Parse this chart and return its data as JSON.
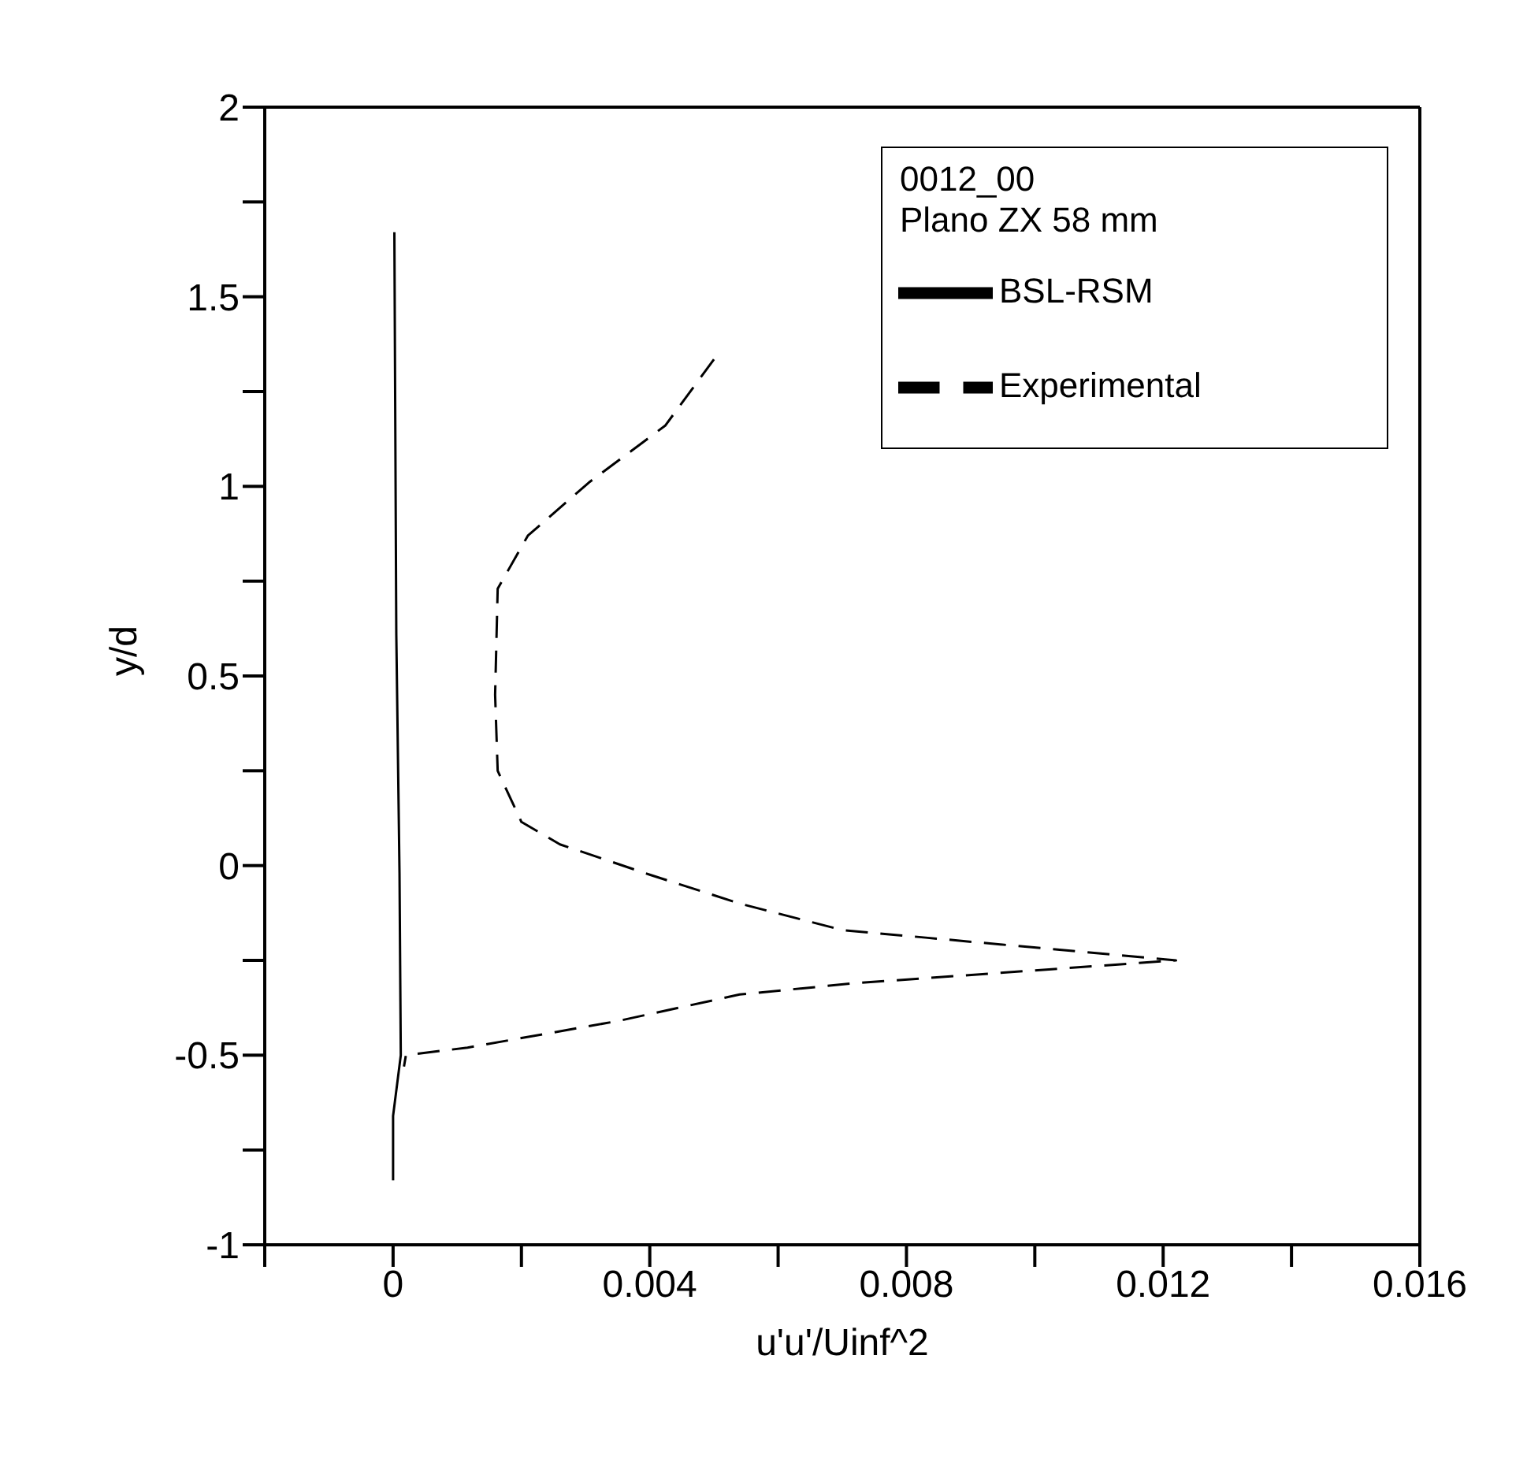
{
  "chart_data": {
    "type": "line",
    "xlabel": "u'u'/Uinf^2",
    "ylabel": "y/d",
    "legend_title": "0012_00\nPlano ZX 58 mm",
    "xlim": [
      -0.002,
      0.016
    ],
    "ylim": [
      -1,
      2
    ],
    "xticks": [
      {
        "value": -0.002,
        "label": null
      },
      0,
      {
        "value": 0.002,
        "label": null
      },
      0.004,
      {
        "value": 0.006,
        "label": null
      },
      0.008,
      {
        "value": 0.01,
        "label": null
      },
      0.012,
      {
        "value": 0.014,
        "label": null
      },
      0.016
    ],
    "yticks": [
      -1,
      {
        "value": -0.75,
        "label": null
      },
      -0.5,
      {
        "value": -0.25,
        "label": null
      },
      0,
      {
        "value": 0.25,
        "label": null
      },
      0.5,
      {
        "value": 0.75,
        "label": null
      },
      1,
      {
        "value": 1.25,
        "label": null
      },
      1.5,
      {
        "value": 1.75,
        "label": null
      },
      2
    ],
    "grid": false,
    "legend": "top right",
    "marker": "none",
    "series": [
      {
        "name": "BSL-RSM",
        "color": "#000000",
        "line_style": "solid",
        "x": [
          2e-05,
          5e-05,
          0.0001,
          0.00012,
          0.0,
          0.0
        ],
        "values": [
          1.67,
          0.61,
          -0.02,
          -0.5,
          -0.66,
          -0.83
        ]
      },
      {
        "name": "Experimental",
        "color": "#000000",
        "line_style": "dashed",
        "x": [
          0.005,
          0.00424,
          0.00305,
          0.0021,
          0.00163,
          0.00159,
          0.00163,
          0.002,
          0.0026,
          0.004,
          0.0054,
          0.007,
          0.0083,
          0.0122,
          0.0072,
          0.0054,
          0.0035,
          0.00116,
          0.0002,
          0.00017
        ],
        "values": [
          1.335,
          1.16,
          1.01,
          0.87,
          0.73,
          0.45,
          0.25,
          0.115,
          0.056,
          -0.024,
          -0.1,
          -0.17,
          -0.19,
          -0.25,
          -0.31,
          -0.34,
          -0.41,
          -0.48,
          -0.5,
          -0.53
        ]
      }
    ]
  }
}
